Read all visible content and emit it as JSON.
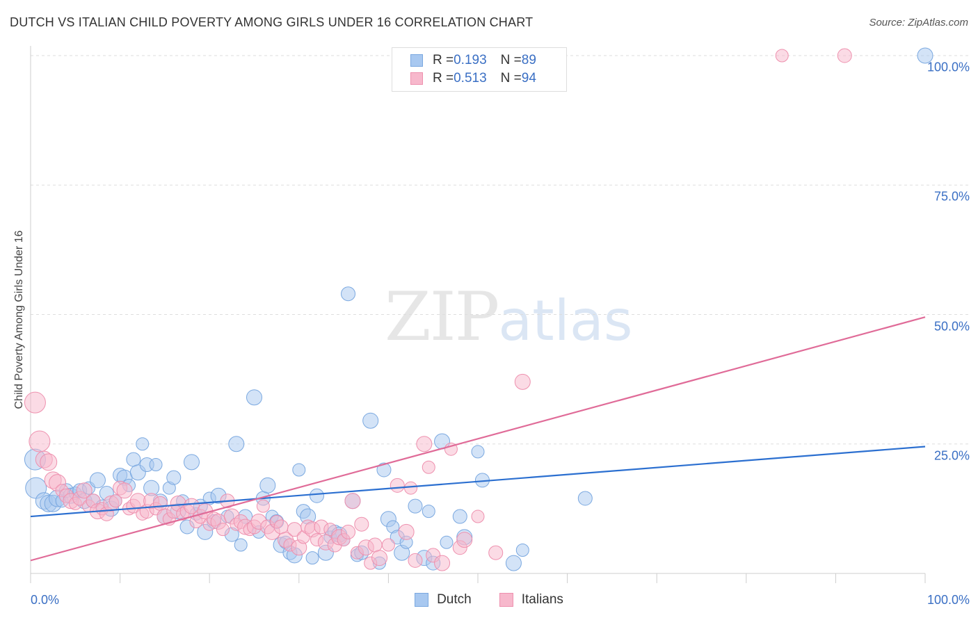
{
  "header": {
    "title": "DUTCH VS ITALIAN CHILD POVERTY AMONG GIRLS UNDER 16 CORRELATION CHART",
    "source": "Source: ZipAtlas.com"
  },
  "watermark": {
    "zip": "ZIP",
    "atlas": "atlas"
  },
  "legend": {
    "dutch": {
      "r_label": "R = ",
      "r_value": "0.193",
      "n_label": "N = ",
      "n_value": "89"
    },
    "italians": {
      "r_label": "R = ",
      "r_value": "0.513",
      "n_label": "N = ",
      "n_value": "94"
    }
  },
  "colors": {
    "dutch_fill": "#a8c8f0",
    "dutch_stroke": "#7aa8e0",
    "dutch_line": "#2b6fd0",
    "italians_fill": "#f7b8cc",
    "italians_stroke": "#ee90ae",
    "italians_line": "#e06b98",
    "tick_text": "#3a6fc4",
    "grid": "#dddddd"
  },
  "chart_data": {
    "type": "scatter",
    "title": "DUTCH VS ITALIAN CHILD POVERTY AMONG GIRLS UNDER 16 CORRELATION CHART",
    "xlabel": "",
    "ylabel": "Child Poverty Among Girls Under 16",
    "xlim": [
      0,
      100
    ],
    "ylim": [
      0,
      100
    ],
    "y_ticks": [
      25,
      50,
      75,
      100
    ],
    "y_tick_labels": [
      "25.0%",
      "50.0%",
      "75.0%",
      "100.0%"
    ],
    "x_tick_labels": [
      "0.0%",
      "100.0%"
    ],
    "grid": "horizontal dashed",
    "legend_position": "top-center",
    "series": [
      {
        "name": "Dutch",
        "trend": [
          [
            0,
            11.0
          ],
          [
            100,
            24.5
          ]
        ],
        "points": [
          [
            0.5,
            22
          ],
          [
            0.6,
            16.5
          ],
          [
            1.5,
            14
          ],
          [
            2,
            13.5
          ],
          [
            2.5,
            13.5
          ],
          [
            3,
            14.5
          ],
          [
            3.5,
            14
          ],
          [
            4,
            16
          ],
          [
            4.5,
            15
          ],
          [
            5,
            15.5
          ],
          [
            5.5,
            16
          ],
          [
            6,
            14
          ],
          [
            6.5,
            16.5
          ],
          [
            7,
            14
          ],
          [
            7.5,
            18
          ],
          [
            8,
            13
          ],
          [
            8.5,
            15.5
          ],
          [
            9,
            12.5
          ],
          [
            9.5,
            14
          ],
          [
            10,
            19
          ],
          [
            10.5,
            18.5
          ],
          [
            11,
            17
          ],
          [
            11.5,
            22
          ],
          [
            12,
            19.5
          ],
          [
            12.5,
            25
          ],
          [
            13,
            21
          ],
          [
            13.5,
            16.5
          ],
          [
            14,
            21
          ],
          [
            14.5,
            14
          ],
          [
            15,
            11
          ],
          [
            15.5,
            16.5
          ],
          [
            16,
            18.5
          ],
          [
            16.5,
            12
          ],
          [
            17,
            14
          ],
          [
            17.5,
            9
          ],
          [
            18,
            21.5
          ],
          [
            18.5,
            11.5
          ],
          [
            19,
            13
          ],
          [
            19.5,
            8
          ],
          [
            20,
            14.5
          ],
          [
            20.5,
            10
          ],
          [
            21,
            15
          ],
          [
            22,
            11
          ],
          [
            22.5,
            7.5
          ],
          [
            23,
            25
          ],
          [
            23.5,
            5.5
          ],
          [
            24,
            11
          ],
          [
            25,
            34
          ],
          [
            25.5,
            8
          ],
          [
            26,
            14.5
          ],
          [
            26.5,
            17
          ],
          [
            27,
            11
          ],
          [
            27.5,
            10
          ],
          [
            28,
            5.5
          ],
          [
            28.5,
            6
          ],
          [
            29,
            4
          ],
          [
            29.5,
            3.5
          ],
          [
            30,
            20
          ],
          [
            30.5,
            12
          ],
          [
            31,
            11
          ],
          [
            31.5,
            3
          ],
          [
            32,
            15
          ],
          [
            33,
            4
          ],
          [
            33.5,
            7
          ],
          [
            34,
            8
          ],
          [
            34.5,
            7.5
          ],
          [
            35,
            6.5
          ],
          [
            35.5,
            54
          ],
          [
            36,
            14
          ],
          [
            36.5,
            3.5
          ],
          [
            37,
            4
          ],
          [
            38,
            29.5
          ],
          [
            39,
            2
          ],
          [
            39.5,
            20
          ],
          [
            40,
            10.5
          ],
          [
            40.5,
            9
          ],
          [
            41,
            7
          ],
          [
            41.5,
            4
          ],
          [
            42,
            6
          ],
          [
            43,
            13
          ],
          [
            44,
            3
          ],
          [
            44.5,
            12
          ],
          [
            45,
            2
          ],
          [
            46,
            25.5
          ],
          [
            46.5,
            6
          ],
          [
            48,
            11
          ],
          [
            48.5,
            7
          ],
          [
            50,
            23.5
          ],
          [
            50.5,
            18
          ],
          [
            54,
            2
          ],
          [
            55,
            4.5
          ],
          [
            62,
            14.5
          ],
          [
            100,
            100
          ]
        ]
      },
      {
        "name": "Italians",
        "trend": [
          [
            0,
            2.5
          ],
          [
            100,
            49.5
          ]
        ],
        "points": [
          [
            0.5,
            33
          ],
          [
            1,
            25.5
          ],
          [
            1.5,
            22
          ],
          [
            2,
            21.5
          ],
          [
            2.5,
            18
          ],
          [
            3,
            17.5
          ],
          [
            3.5,
            16
          ],
          [
            4,
            15
          ],
          [
            4.5,
            14
          ],
          [
            5,
            13.5
          ],
          [
            5.5,
            14.5
          ],
          [
            6,
            16
          ],
          [
            6.5,
            13
          ],
          [
            7,
            14
          ],
          [
            7.5,
            12
          ],
          [
            8,
            12.5
          ],
          [
            8.5,
            11.5
          ],
          [
            9,
            13.5
          ],
          [
            9.5,
            14
          ],
          [
            10,
            16.5
          ],
          [
            10.5,
            16
          ],
          [
            11,
            12.5
          ],
          [
            11.5,
            13
          ],
          [
            12,
            14
          ],
          [
            12.5,
            11.5
          ],
          [
            13,
            12
          ],
          [
            13.5,
            14
          ],
          [
            14,
            12.5
          ],
          [
            14.5,
            13.5
          ],
          [
            15,
            11
          ],
          [
            15.5,
            10.5
          ],
          [
            16,
            12
          ],
          [
            16.5,
            13.5
          ],
          [
            17,
            11.5
          ],
          [
            17.5,
            12
          ],
          [
            18,
            13
          ],
          [
            18.5,
            10
          ],
          [
            19,
            11
          ],
          [
            19.5,
            12
          ],
          [
            20,
            9.5
          ],
          [
            20.5,
            10.5
          ],
          [
            21,
            10
          ],
          [
            21.5,
            8.5
          ],
          [
            22,
            14
          ],
          [
            22.5,
            11
          ],
          [
            23,
            9.5
          ],
          [
            23.5,
            10
          ],
          [
            24,
            9
          ],
          [
            24.5,
            8.5
          ],
          [
            25,
            9
          ],
          [
            25.5,
            10
          ],
          [
            26,
            13
          ],
          [
            26.5,
            9
          ],
          [
            27,
            8
          ],
          [
            27.5,
            10
          ],
          [
            28,
            9
          ],
          [
            28.5,
            6.5
          ],
          [
            29,
            5.5
          ],
          [
            29.5,
            8.5
          ],
          [
            30,
            5
          ],
          [
            30.5,
            7
          ],
          [
            31,
            9
          ],
          [
            31.5,
            8.5
          ],
          [
            32,
            6.5
          ],
          [
            32.5,
            9
          ],
          [
            33,
            6
          ],
          [
            33.5,
            8.5
          ],
          [
            34,
            5.5
          ],
          [
            34.5,
            7
          ],
          [
            35,
            6.5
          ],
          [
            35.5,
            8
          ],
          [
            36,
            14
          ],
          [
            36.5,
            4
          ],
          [
            37,
            9.5
          ],
          [
            37.5,
            5
          ],
          [
            38,
            2
          ],
          [
            38.5,
            5.5
          ],
          [
            39,
            3
          ],
          [
            40,
            5.5
          ],
          [
            41,
            17
          ],
          [
            42,
            8
          ],
          [
            42.5,
            16.5
          ],
          [
            43,
            2.5
          ],
          [
            44,
            25
          ],
          [
            44.5,
            20.5
          ],
          [
            45,
            3.5
          ],
          [
            46,
            2
          ],
          [
            47,
            24
          ],
          [
            48,
            5
          ],
          [
            48.5,
            6.5
          ],
          [
            50,
            11
          ],
          [
            52,
            4
          ],
          [
            55,
            37
          ],
          [
            84,
            100
          ],
          [
            91,
            100
          ]
        ]
      }
    ]
  },
  "bottom_legend": {
    "dutch": "Dutch",
    "italians": "Italians"
  }
}
